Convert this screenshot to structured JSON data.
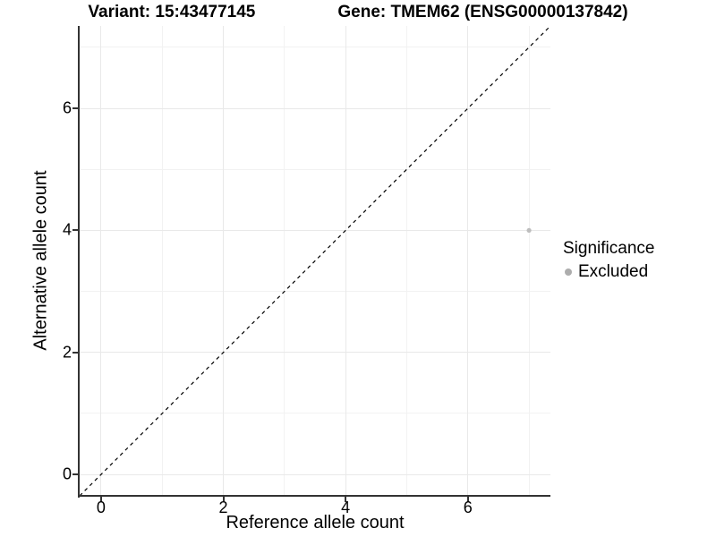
{
  "title": {
    "variant": "Variant: 15:43477145",
    "gene": "Gene: TMEM62 (ENSG00000137842)"
  },
  "legend": {
    "title": "Significance",
    "entries": [
      {
        "label": "Excluded",
        "color": "#adadad"
      }
    ]
  },
  "colors": {
    "background": "#ffffff",
    "grid_major": "#e9e9e9",
    "grid_minor": "#f2f2f2",
    "axis_line": "#333333",
    "tick_mark": "#333333",
    "text": "#000000",
    "point": "#bdbdbd",
    "reference_line": "#000000"
  },
  "chart_data": {
    "type": "scatter",
    "title": "Variant: 15:43477145    Gene: TMEM62 (ENSG00000137842)",
    "xlabel": "Reference allele count",
    "ylabel": "Alternative allele count",
    "xlim": [
      -0.35,
      7.35
    ],
    "ylim": [
      -0.35,
      7.35
    ],
    "x_ticks": [
      0,
      2,
      4,
      6
    ],
    "y_ticks": [
      0,
      2,
      4,
      6
    ],
    "x_minor_ticks": [
      1,
      3,
      5,
      7
    ],
    "y_minor_ticks": [
      1,
      3,
      5,
      7
    ],
    "grid": "major and minor, light gray on white",
    "legend_position": "right",
    "series": [
      {
        "name": "Excluded",
        "color": "#bdbdbd",
        "points": [
          {
            "x": 7,
            "y": 4
          }
        ]
      }
    ],
    "reference_line": {
      "kind": "identity y=x",
      "style": "dashed",
      "color": "#000000",
      "from": {
        "x": -0.35,
        "y": -0.35
      },
      "to": {
        "x": 7.35,
        "y": 7.35
      }
    }
  }
}
